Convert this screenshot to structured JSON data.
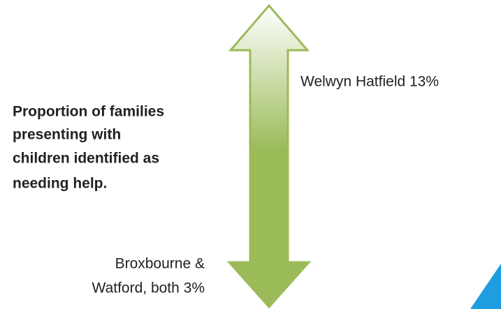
{
  "description": {
    "lines": [
      "Proportion of families",
      "presenting with",
      "children identified as",
      "needing help."
    ]
  },
  "top_label": "Welwyn Hatfield 13%",
  "bottom_label": {
    "lines": [
      "Broxbourne &",
      "Watford, both 3%"
    ]
  }
}
